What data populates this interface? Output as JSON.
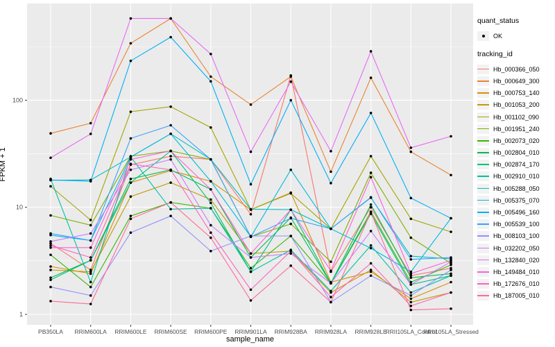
{
  "figure": {
    "background": "#FFFFFF",
    "panel_background": "#EBEBEB",
    "gridline_color": "#FFFFFF",
    "tick_label_color": "#4D4D4D",
    "point_color": "#000000"
  },
  "axes": {
    "x_title": "sample_name",
    "y_title": "FPKM + 1",
    "y_tick_labels": [
      "1",
      "10",
      "100"
    ]
  },
  "legend": {
    "quant_status_title": "quant_status",
    "quant_status_items": [
      {
        "label": "OK",
        "marker": "black-point"
      }
    ],
    "tracking_id_title": "tracking_id"
  },
  "chart_data": {
    "type": "line",
    "title": "",
    "xlabel": "sample_name",
    "ylabel": "FPKM + 1",
    "y_scale": "log10",
    "ylim": [
      0.8,
      811
    ],
    "y_major_ticks": [
      1,
      10,
      100
    ],
    "y_minor_ticks": [
      3.162,
      31.62,
      316.2
    ],
    "grid": "white on grey panel",
    "legend_position": "right",
    "marker": "small black point at every vertex (quant_status = OK)",
    "categories": [
      "PB350LA",
      "RRIM600LA",
      "RRIM600LE",
      "RRIM600SE",
      "RRIM600PE",
      "RRIM901LA",
      "RRIM928BA",
      "RRIM928LA",
      "RRIM928LE",
      "RRII105LA_Control",
      "RRII105LA_Stressed"
    ],
    "series": [
      {
        "name": "Hb_000366_050",
        "color": "#F8766D",
        "values": [
          4.6,
          2.6,
          25,
          30,
          28,
          8.6,
          170,
          2.5,
          10,
          2.3,
          2.7
        ]
      },
      {
        "name": "Hb_000649_300",
        "color": "#EA8331",
        "values": [
          49,
          61,
          340,
          580,
          166,
          91,
          166,
          21.5,
          162,
          33,
          20
        ]
      },
      {
        "name": "Hb_000753_140",
        "color": "#D89000",
        "values": [
          2.8,
          2.4,
          17,
          22,
          17.5,
          9.5,
          13.7,
          2.0,
          2.5,
          1.4,
          2.0
        ]
      },
      {
        "name": "Hb_001053_200",
        "color": "#C09B00",
        "values": [
          2.6,
          2.5,
          12.6,
          17,
          11.8,
          3.7,
          3.9,
          1.6,
          2.6,
          1.3,
          1.6
        ]
      },
      {
        "name": "Hb_001102_090",
        "color": "#A3A500",
        "values": [
          15.7,
          7.6,
          78,
          87,
          55.6,
          9.5,
          13.5,
          6.3,
          30,
          7.8,
          5.9
        ]
      },
      {
        "name": "Hb_001951_240",
        "color": "#7CAE00",
        "values": [
          8.4,
          6.8,
          30,
          33.6,
          28,
          5.3,
          7.0,
          3.1,
          21,
          5.2,
          3.0
        ]
      },
      {
        "name": "Hb_002073_020",
        "color": "#39B600",
        "values": [
          3.6,
          1.8,
          8.3,
          11.1,
          9.8,
          2.7,
          5.4,
          1.95,
          9.1,
          2.0,
          2.9
        ]
      },
      {
        "name": "Hb_002804_010",
        "color": "#00BB4E",
        "values": [
          2.2,
          3.2,
          18.4,
          22.4,
          14.7,
          3.4,
          8.0,
          1.95,
          10.6,
          2.2,
          2.4
        ]
      },
      {
        "name": "Hb_002874_170",
        "color": "#00BF7D",
        "values": [
          2.1,
          3.2,
          17,
          33.6,
          11,
          2.5,
          9.5,
          1.95,
          8.7,
          1.9,
          2.3
        ]
      },
      {
        "name": "Hb_002910_010",
        "color": "#00C1A3",
        "values": [
          18.4,
          2.0,
          29.5,
          9.6,
          9.8,
          2.5,
          4.0,
          1.65,
          4.4,
          1.6,
          2.3
        ]
      },
      {
        "name": "Hb_005288_050",
        "color": "#00BFC4",
        "values": [
          17.9,
          18,
          29.5,
          48.6,
          28,
          9.6,
          9.5,
          6.3,
          12.3,
          3.5,
          3.3
        ]
      },
      {
        "name": "Hb_005375_070",
        "color": "#00BAE0",
        "values": [
          5.5,
          4.9,
          29.5,
          48.6,
          17.5,
          5.3,
          22.4,
          6.3,
          4.15,
          2.5,
          7.9
        ]
      },
      {
        "name": "Hb_005496_160",
        "color": "#00B0F6",
        "values": [
          18,
          17.5,
          233,
          388,
          150,
          16.4,
          100,
          16.8,
          76,
          12.2,
          7.9
        ]
      },
      {
        "name": "Hb_005539_100",
        "color": "#35A2FF",
        "values": [
          5.7,
          4.9,
          44,
          58.3,
          28,
          5.3,
          7.9,
          6.3,
          12.4,
          3.26,
          3.4
        ]
      },
      {
        "name": "Hb_008103_100",
        "color": "#9590FF",
        "values": [
          1.8,
          1.5,
          5.8,
          8.3,
          3.9,
          5.4,
          5.4,
          1.3,
          2.3,
          1.5,
          2.6
        ]
      },
      {
        "name": "Hb_032202_050",
        "color": "#C77CFF",
        "values": [
          4.8,
          5.7,
          22.4,
          28,
          6.8,
          3.4,
          3.7,
          1.95,
          6.0,
          1.9,
          3.1
        ]
      },
      {
        "name": "Hb_132840_020",
        "color": "#E76BF3",
        "values": [
          29,
          48.5,
          580,
          580,
          270,
          33,
          149,
          33.4,
          286,
          36,
          46
        ]
      },
      {
        "name": "Hb_149484_010",
        "color": "#FA62DB",
        "values": [
          4.2,
          4.2,
          28,
          33.6,
          14.7,
          3.7,
          9.5,
          2.55,
          19.1,
          2.4,
          3.2
        ]
      },
      {
        "name": "Hb_172676_010",
        "color": "#FF62BC",
        "values": [
          4.4,
          3.4,
          25.4,
          22.4,
          5.8,
          1.7,
          3.9,
          1.45,
          3.0,
          1.2,
          1.6
        ]
      },
      {
        "name": "Hb_187005_010",
        "color": "#FF6A98",
        "values": [
          1.33,
          1.25,
          7.8,
          11.1,
          5.2,
          1.35,
          2.85,
          1.3,
          9.0,
          1.1,
          1.13
        ]
      }
    ]
  }
}
